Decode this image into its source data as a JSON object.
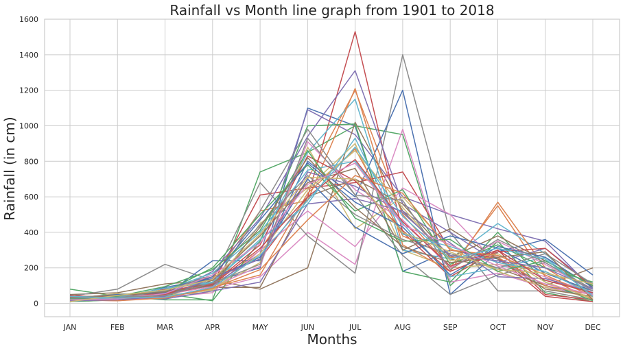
{
  "chart_data": {
    "type": "line",
    "title": "Rainfall vs Month line graph from 1901 to 2018",
    "xlabel": "Months",
    "ylabel": "Rainfall (in cm)",
    "categories": [
      "JAN",
      "FEB",
      "MAR",
      "APR",
      "MAY",
      "JUN",
      "JUL",
      "AUG",
      "SEP",
      "OCT",
      "NOV",
      "DEC"
    ],
    "ylim": [
      -75,
      1600
    ],
    "yticks": [
      0,
      200,
      400,
      600,
      800,
      1000,
      1200,
      1400,
      1600
    ],
    "grid": true,
    "legend": "none",
    "palette": [
      "#4c72b0",
      "#dd8452",
      "#55a868",
      "#c44e52",
      "#8172b3",
      "#937860",
      "#da8bc3",
      "#8c8c8c",
      "#ccb974",
      "#64b5cd"
    ],
    "series": [
      {
        "values": [
          10,
          30,
          40,
          120,
          200,
          1100,
          1000,
          180,
          300,
          250,
          100,
          30
        ]
      },
      {
        "values": [
          20,
          20,
          30,
          90,
          300,
          700,
          1200,
          500,
          200,
          550,
          150,
          20
        ]
      },
      {
        "values": [
          80,
          40,
          20,
          20,
          740,
          850,
          1000,
          950,
          100,
          350,
          60,
          10
        ]
      },
      {
        "values": [
          15,
          25,
          80,
          150,
          250,
          600,
          1530,
          400,
          150,
          300,
          50,
          20
        ]
      },
      {
        "values": [
          30,
          50,
          60,
          100,
          280,
          1090,
          950,
          600,
          500,
          420,
          350,
          80
        ]
      },
      {
        "values": [
          50,
          60,
          110,
          130,
          80,
          200,
          1020,
          520,
          250,
          200,
          100,
          200
        ]
      },
      {
        "values": [
          10,
          20,
          40,
          80,
          150,
          400,
          220,
          980,
          120,
          170,
          90,
          50
        ]
      },
      {
        "values": [
          40,
          80,
          220,
          130,
          680,
          380,
          170,
          1400,
          400,
          70,
          70,
          20
        ]
      },
      {
        "values": [
          20,
          30,
          50,
          60,
          450,
          650,
          900,
          300,
          200,
          220,
          180,
          60
        ]
      },
      {
        "values": [
          30,
          40,
          60,
          120,
          350,
          850,
          1150,
          300,
          250,
          450,
          280,
          50
        ]
      },
      {
        "values": [
          25,
          30,
          45,
          240,
          240,
          800,
          600,
          1200,
          50,
          290,
          360,
          160
        ]
      },
      {
        "values": [
          15,
          35,
          50,
          140,
          520,
          580,
          1210,
          330,
          180,
          570,
          200,
          40
        ]
      },
      {
        "values": [
          40,
          35,
          55,
          15,
          350,
          1000,
          1010,
          180,
          120,
          400,
          120,
          15
        ]
      },
      {
        "values": [
          20,
          40,
          70,
          110,
          610,
          650,
          680,
          740,
          300,
          260,
          40,
          10
        ]
      },
      {
        "values": [
          10,
          30,
          40,
          180,
          480,
          940,
          1310,
          560,
          400,
          230,
          310,
          100
        ]
      },
      {
        "values": [
          35,
          25,
          30,
          90,
          90,
          600,
          700,
          560,
          260,
          380,
          240,
          100
        ]
      },
      {
        "values": [
          20,
          15,
          35,
          60,
          300,
          520,
          320,
          650,
          500,
          220,
          150,
          60
        ]
      },
      {
        "values": [
          30,
          20,
          60,
          100,
          520,
          980,
          610,
          270,
          50,
          160,
          230,
          80
        ]
      },
      {
        "values": [
          25,
          55,
          40,
          80,
          230,
          880,
          420,
          600,
          310,
          180,
          90,
          30
        ]
      },
      {
        "values": [
          15,
          30,
          75,
          170,
          400,
          750,
          800,
          450,
          150,
          200,
          260,
          40
        ]
      },
      {
        "values": [
          45,
          25,
          90,
          140,
          260,
          700,
          430,
          280,
          380,
          310,
          170,
          70
        ]
      },
      {
        "values": [
          20,
          50,
          35,
          90,
          160,
          620,
          870,
          380,
          260,
          260,
          100,
          50
        ]
      },
      {
        "values": [
          10,
          20,
          65,
          200,
          500,
          780,
          520,
          640,
          220,
          330,
          200,
          120
        ]
      },
      {
        "values": [
          30,
          45,
          55,
          110,
          330,
          830,
          690,
          410,
          180,
          290,
          310,
          90
        ]
      },
      {
        "values": [
          25,
          35,
          25,
          70,
          120,
          560,
          590,
          520,
          340,
          150,
          140,
          60
        ]
      },
      {
        "values": [
          35,
          20,
          45,
          130,
          380,
          680,
          760,
          300,
          420,
          250,
          80,
          40
        ]
      },
      {
        "values": [
          15,
          40,
          50,
          95,
          210,
          910,
          640,
          470,
          200,
          350,
          220,
          70
        ]
      },
      {
        "values": [
          20,
          30,
          70,
          160,
          440,
          720,
          500,
          360,
          280,
          200,
          280,
          110
        ]
      },
      {
        "values": [
          40,
          25,
          40,
          75,
          280,
          640,
          860,
          540,
          240,
          280,
          120,
          30
        ]
      },
      {
        "values": [
          10,
          35,
          85,
          120,
          360,
          560,
          930,
          390,
          320,
          230,
          180,
          50
        ]
      },
      {
        "values": [
          30,
          50,
          60,
          150,
          470,
          790,
          570,
          430,
          160,
          320,
          260,
          90
        ]
      },
      {
        "values": [
          20,
          15,
          30,
          85,
          190,
          470,
          720,
          620,
          300,
          270,
          160,
          40
        ]
      },
      {
        "values": [
          25,
          40,
          95,
          190,
          410,
          860,
          480,
          350,
          360,
          180,
          240,
          100
        ]
      },
      {
        "values": [
          45,
          30,
          50,
          105,
          310,
          600,
          810,
          460,
          210,
          300,
          130,
          60
        ]
      },
      {
        "values": [
          15,
          20,
          40,
          140,
          250,
          740,
          660,
          510,
          270,
          240,
          200,
          80
        ]
      },
      {
        "values": [
          35,
          45,
          65,
          100,
          430,
          820,
          540,
          320,
          230,
          260,
          290,
          20
        ]
      },
      {
        "values": [
          20,
          25,
          55,
          160,
          340,
          670,
          790,
          440,
          330,
          210,
          110,
          50
        ]
      },
      {
        "values": [
          30,
          35,
          45,
          115,
          220,
          930,
          610,
          580,
          190,
          360,
          230,
          70
        ]
      },
      {
        "values": [
          10,
          45,
          75,
          135,
          390,
          710,
          700,
          400,
          290,
          190,
          170,
          110
        ]
      },
      {
        "values": [
          40,
          30,
          35,
          90,
          270,
          580,
          880,
          490,
          250,
          310,
          250,
          40
        ]
      }
    ]
  }
}
